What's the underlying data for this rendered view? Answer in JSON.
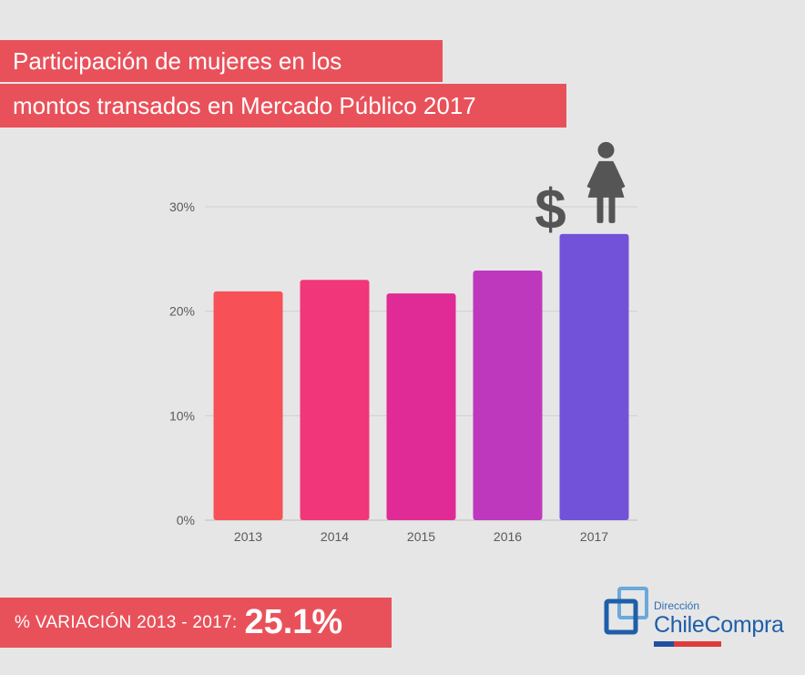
{
  "title": {
    "line1": "Participación de mujeres en los",
    "line2": "montos transados en Mercado Público 2017"
  },
  "chart_data": {
    "type": "bar",
    "title": "Participación de mujeres en los montos transados en Mercado Público 2017",
    "categories": [
      "2013",
      "2014",
      "2015",
      "2016",
      "2017"
    ],
    "values": [
      21.9,
      23.0,
      21.7,
      23.9,
      27.4
    ],
    "colors": [
      "#f75157",
      "#f1367a",
      "#e02b96",
      "#be38bd",
      "#7252d8"
    ],
    "yticks": [
      "0%",
      "10%",
      "20%",
      "30%"
    ],
    "ytick_values": [
      0,
      10,
      20,
      30
    ],
    "ylim": [
      0,
      30
    ],
    "xlabel": "",
    "ylabel": "",
    "grid": true,
    "unit": "%"
  },
  "highlight": {
    "symbol": "$",
    "icon": "woman-icon",
    "icon_color": "#555555"
  },
  "footer": {
    "label": "% VARIACIÓN 2013 - 2017:",
    "value": "25.1%"
  },
  "logo": {
    "small": "Dirección",
    "big": "ChileCompra"
  }
}
